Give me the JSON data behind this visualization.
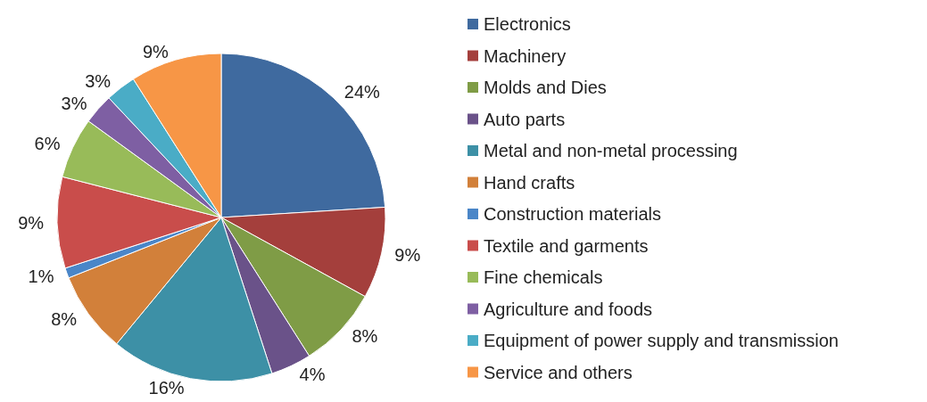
{
  "chart_data": {
    "type": "pie",
    "categories": [
      "Electronics",
      "Machinery",
      "Molds and Dies",
      "Auto parts",
      "Metal and non-metal processing",
      "Hand crafts",
      "Construction materials",
      "Textile and garments",
      "Fine chemicals",
      "Agriculture and foods",
      "Equipment of power supply and transmission",
      "Service and others"
    ],
    "values": [
      24,
      9,
      8,
      4,
      16,
      8,
      1,
      9,
      6,
      3,
      3,
      9
    ],
    "value_labels": [
      "24%",
      "9%",
      "8%",
      "4%",
      "16%",
      "8%",
      "1%",
      "9%",
      "6%",
      "3%",
      "3%",
      "9%"
    ],
    "colors": [
      "#3f6a9f",
      "#a43f3c",
      "#7f9c46",
      "#6a5289",
      "#3d90a6",
      "#d2803a",
      "#4a86c8",
      "#c94d4b",
      "#98bb59",
      "#7e5fa3",
      "#4aacc6",
      "#f79646"
    ],
    "legend": "right"
  }
}
